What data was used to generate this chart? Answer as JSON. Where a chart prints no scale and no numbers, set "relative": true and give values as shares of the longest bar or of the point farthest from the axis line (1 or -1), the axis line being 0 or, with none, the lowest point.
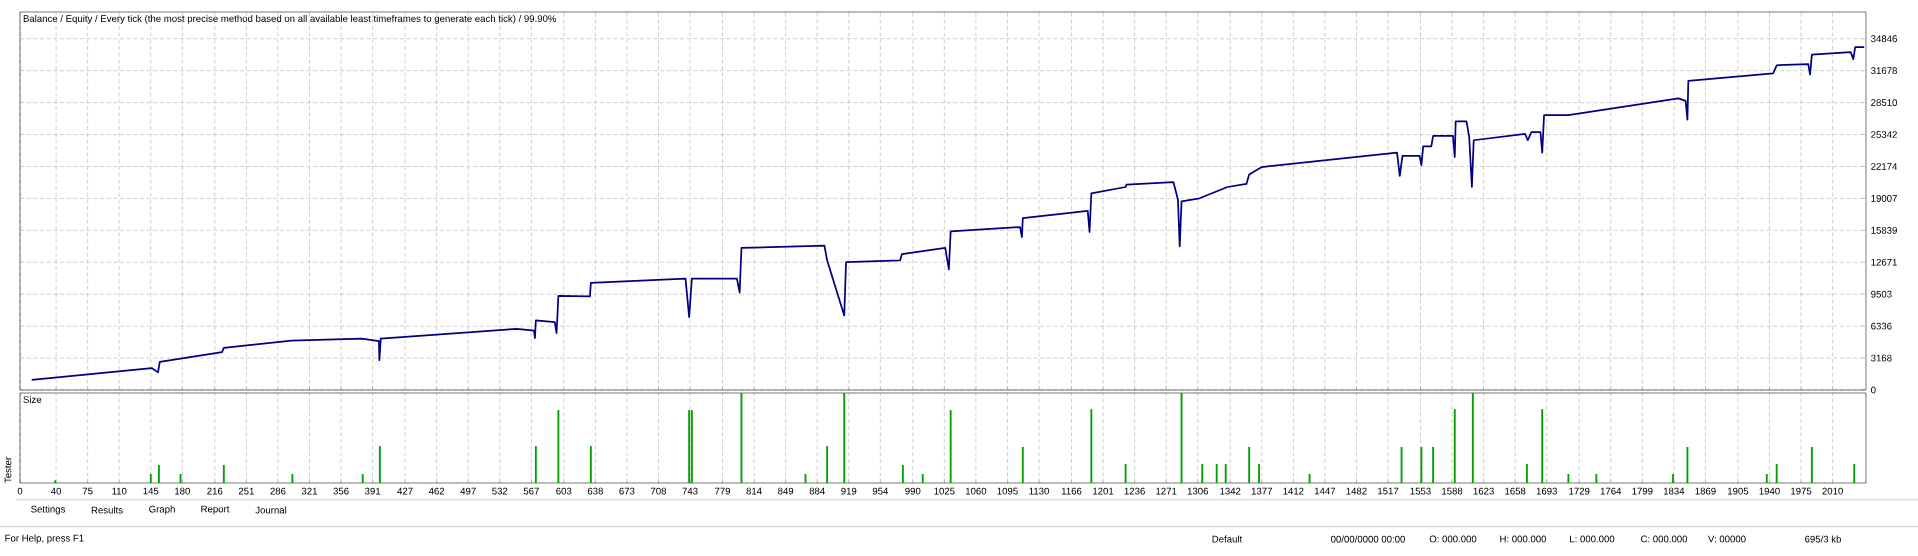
{
  "chart_data": [
    {
      "type": "line",
      "title": "Balance / Equity / Every tick (the most precise method based on all available least timeframes to generate each tick) / 99.90%",
      "color": "#000080",
      "grid": true,
      "tick_labels": "y",
      "xlim": [
        0,
        2047
      ],
      "ylim": [
        0,
        37500
      ],
      "yticks": [
        0,
        3168,
        6336,
        9503,
        12671,
        15839,
        19007,
        22174,
        25342,
        28510,
        31678,
        34846
      ],
      "xticks": [
        0,
        40,
        75,
        110,
        145,
        180,
        216,
        251,
        286,
        321,
        356,
        391,
        427,
        462,
        497,
        532,
        567,
        603,
        638,
        673,
        708,
        743,
        779,
        814,
        849,
        884,
        919,
        954,
        990,
        1025,
        1060,
        1095,
        1130,
        1166,
        1201,
        1236,
        1271,
        1306,
        1342,
        1377,
        1412,
        1447,
        1482,
        1517,
        1553,
        1588,
        1623,
        1658,
        1693,
        1729,
        1764,
        1799,
        1834,
        1869,
        1905,
        1940,
        1975,
        2010
      ],
      "x": [
        13,
        146,
        153,
        155,
        224,
        226,
        301,
        379,
        398,
        398.5,
        400,
        551,
        570,
        571,
        572,
        593,
        595,
        597,
        632,
        633,
        738,
        742,
        745,
        795,
        798,
        800,
        892,
        895,
        914,
        916,
        976,
        978,
        1026,
        1030,
        1032,
        1109,
        1111,
        1112,
        1184,
        1186,
        1188,
        1226,
        1227,
        1279,
        1284,
        1286,
        1288,
        1308,
        1339,
        1360,
        1363,
        1377,
        1527,
        1530,
        1533,
        1552,
        1554,
        1556,
        1565,
        1567,
        1589,
        1591,
        1592,
        1604,
        1607,
        1610,
        1612,
        1669,
        1672,
        1676,
        1686,
        1688,
        1690,
        1717,
        1839,
        1847,
        1849,
        1850,
        1944,
        1948,
        1983,
        1985,
        1987,
        2030,
        2033,
        2035,
        2045
      ],
      "values": [
        1013,
        2175,
        1748,
        2780,
        3754,
        4180,
        4905,
        5094,
        4846,
        2959,
        5094,
        6067,
        5879,
        5154,
        6911,
        6733,
        5640,
        9344,
        9285,
        10625,
        11052,
        7219,
        11052,
        11052,
        9652,
        14090,
        14329,
        12869,
        7398,
        12691,
        12869,
        13485,
        14090,
        11966,
        15729,
        16166,
        15173,
        17040,
        17775,
        15670,
        19512,
        20138,
        20377,
        20625,
        18897,
        14250,
        18708,
        19016,
        20138,
        20446,
        21370,
        22114,
        23544,
        21250,
        23226,
        23226,
        22303,
        24160,
        24160,
        25213,
        25213,
        23107,
        26642,
        26642,
        25094,
        20138,
        24775,
        25401,
        24775,
        25580,
        25580,
        23544,
        27258,
        27258,
        28926,
        28678,
        26821,
        30664,
        31409,
        32213,
        32332,
        31280,
        33266,
        33514,
        32829,
        34010,
        34010
      ]
    },
    {
      "type": "bar",
      "title": "Size",
      "relative": true,
      "color": "#00a000",
      "grid": "x",
      "xlim": [
        0,
        2047
      ],
      "xticks": [
        0,
        40,
        75,
        110,
        145,
        180,
        216,
        251,
        286,
        321,
        356,
        391,
        427,
        462,
        497,
        532,
        567,
        603,
        638,
        673,
        708,
        743,
        779,
        814,
        849,
        884,
        919,
        954,
        990,
        1025,
        1060,
        1095,
        1130,
        1166,
        1201,
        1236,
        1271,
        1306,
        1342,
        1377,
        1412,
        1447,
        1482,
        1517,
        1553,
        1588,
        1623,
        1658,
        1693,
        1729,
        1764,
        1799,
        1834,
        1869,
        1905,
        1940,
        1975,
        2010
      ],
      "x": [
        39,
        145,
        154,
        178,
        226,
        302,
        380,
        399,
        572,
        597,
        633,
        742,
        745,
        800,
        871,
        895,
        914,
        979,
        1001,
        1032,
        1112,
        1188,
        1226,
        1288,
        1311,
        1327,
        1337,
        1363,
        1374,
        1430,
        1532,
        1554,
        1567,
        1591,
        1611,
        1671,
        1688,
        1717,
        1748,
        1833,
        1849,
        1937,
        1948,
        1987,
        2034
      ],
      "values": [
        0.03,
        0.1,
        0.2,
        0.1,
        0.2,
        0.1,
        0.1,
        0.41,
        0.41,
        0.81,
        0.41,
        0.81,
        0.81,
        1.0,
        0.1,
        0.41,
        1.0,
        0.2,
        0.1,
        0.81,
        0.4,
        0.82,
        0.21,
        1.0,
        0.21,
        0.21,
        0.21,
        0.4,
        0.21,
        0.1,
        0.4,
        0.4,
        0.4,
        0.82,
        1.0,
        0.21,
        0.82,
        0.1,
        0.1,
        0.1,
        0.4,
        0.1,
        0.21,
        0.4,
        0.21
      ],
      "annotations": [
        "Tester",
        "Settings",
        "Results",
        "Graph",
        "Report",
        "Journal",
        "For Help, press F1",
        "Default",
        "00/00/0000 00:00",
        "O: 000.000",
        "H: 000.000",
        "L: 000.000",
        "C: 000.000",
        "V: 00000",
        "695/3 kb"
      ]
    }
  ]
}
